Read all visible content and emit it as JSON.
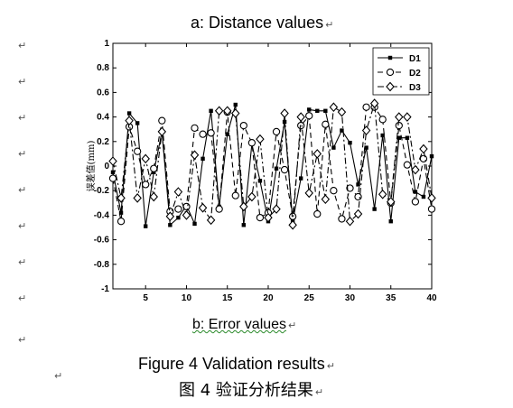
{
  "captions": {
    "subplot_a": "a: Distance values",
    "subplot_b": "b: Error values",
    "figure_en": "Figure 4    Validation results",
    "figure_zh": "图 4    验证分析结果"
  },
  "paragraph_mark": "↵",
  "chart_data": {
    "type": "line",
    "xlabel": "",
    "ylabel": "误差值(mm)",
    "xlim": [
      1,
      40
    ],
    "ylim": [
      -1,
      1
    ],
    "xticks": [
      5,
      10,
      15,
      20,
      25,
      30,
      35,
      40
    ],
    "yticks": [
      -1,
      -0.8,
      -0.6,
      -0.4,
      -0.2,
      0,
      0.2,
      0.4,
      0.6,
      0.8,
      1
    ],
    "ytick_labels": [
      "-1",
      "-0.8",
      "-0.6",
      "-0.4",
      "-0.2",
      "0",
      "0.2",
      "0.4",
      "0.6",
      "0.8",
      "1"
    ],
    "grid": false,
    "legend_position": "top-right",
    "x": [
      1,
      2,
      3,
      4,
      5,
      6,
      7,
      8,
      9,
      10,
      11,
      12,
      13,
      14,
      15,
      16,
      17,
      18,
      19,
      20,
      21,
      22,
      23,
      24,
      25,
      26,
      27,
      28,
      29,
      30,
      31,
      32,
      33,
      34,
      35,
      36,
      37,
      38,
      39,
      40
    ],
    "series": [
      {
        "name": "D1",
        "style": "solid",
        "marker": "square",
        "color": "#000000",
        "values": [
          -0.05,
          -0.38,
          0.43,
          0.35,
          -0.49,
          -0.05,
          0.28,
          -0.48,
          -0.42,
          -0.32,
          -0.47,
          0.06,
          0.45,
          -0.33,
          0.26,
          0.5,
          -0.48,
          0.18,
          -0.12,
          -0.45,
          -0.02,
          0.36,
          -0.45,
          -0.1,
          0.46,
          0.45,
          0.45,
          0.15,
          0.29,
          0.19,
          -0.15,
          0.15,
          -0.35,
          0.25,
          -0.45,
          0.23,
          0.23,
          -0.21,
          -0.25,
          0.08
        ]
      },
      {
        "name": "D2",
        "style": "dashed",
        "marker": "circle",
        "color": "#000000",
        "values": [
          -0.1,
          -0.45,
          0.32,
          0.12,
          -0.15,
          -0.02,
          0.37,
          -0.37,
          -0.35,
          -0.33,
          0.31,
          0.26,
          0.27,
          -0.35,
          0.44,
          -0.24,
          0.33,
          0.19,
          -0.42,
          -0.38,
          0.28,
          -0.03,
          -0.41,
          0.33,
          0.41,
          -0.39,
          0.34,
          -0.2,
          -0.43,
          -0.18,
          -0.25,
          0.48,
          0.48,
          0.38,
          -0.3,
          0.33,
          0.01,
          -0.29,
          0.06,
          -0.35
        ]
      },
      {
        "name": "D3",
        "style": "dashdot",
        "marker": "diamond",
        "color": "#000000",
        "values": [
          0.04,
          -0.26,
          0.37,
          -0.26,
          0.06,
          -0.25,
          0.28,
          -0.41,
          -0.21,
          -0.4,
          0.09,
          -0.34,
          -0.44,
          0.45,
          0.45,
          0.43,
          -0.33,
          -0.25,
          0.22,
          -0.42,
          -0.35,
          0.43,
          -0.48,
          0.4,
          -0.22,
          0.1,
          -0.27,
          0.48,
          0.44,
          -0.45,
          -0.39,
          0.29,
          0.51,
          -0.23,
          -0.29,
          0.4,
          0.4,
          -0.03,
          0.14,
          -0.26
        ]
      }
    ]
  }
}
